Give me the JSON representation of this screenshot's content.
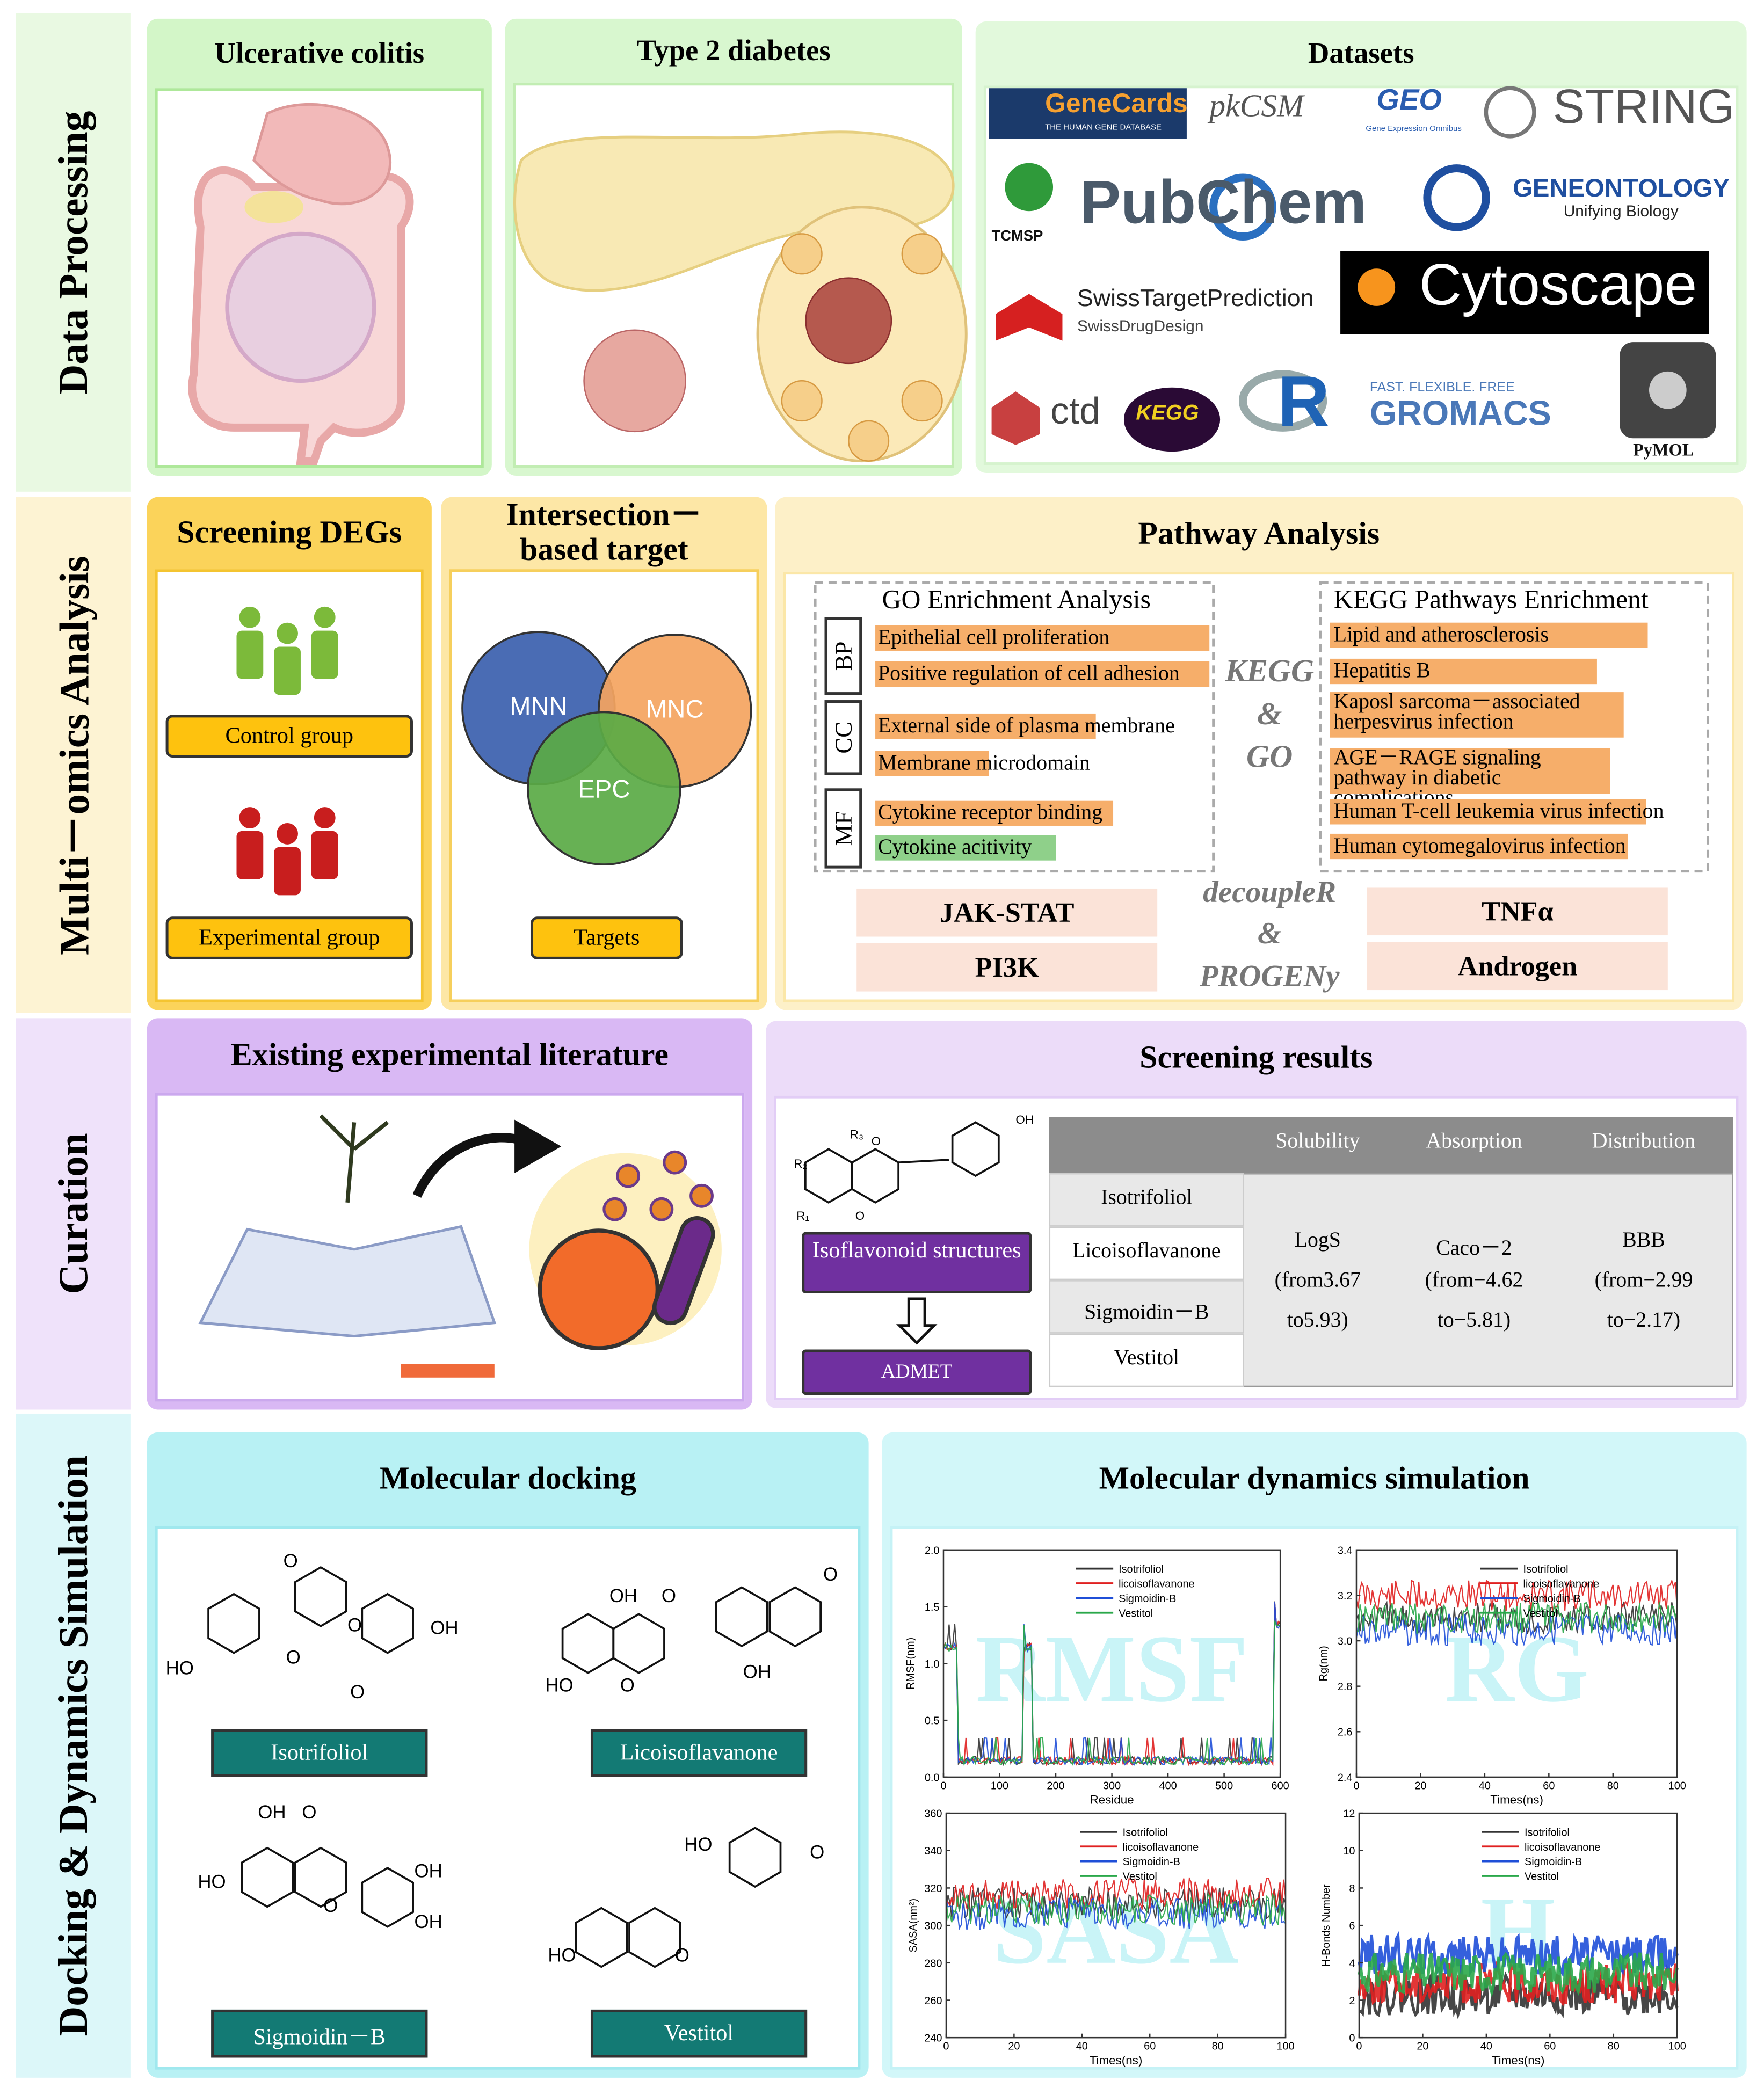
{
  "sections": [
    "Data Processing",
    "Multi－omics Analysis",
    "Curation",
    "Docking & Dynamics Simulation"
  ],
  "data_processing": {
    "colitis": "Ulcerative colitis",
    "diabetes": "Type 2 diabetes",
    "datasets_title": "Datasets",
    "logos": [
      "GeneCards",
      "THE HUMAN GENE DATABASE",
      "pkCSM",
      "GEO",
      "Gene Expression Omnibus",
      "STRING",
      "TCMSP",
      "PubChem",
      "GENEONTOLOGY",
      "Unifying Biology",
      "SwissTargetPrediction",
      "SwissDrugDesign",
      "Cytoscape",
      "ctd",
      "KEGG",
      "R",
      "FAST. FLEXIBLE. FREE",
      "GROMACS",
      "PyMOL"
    ]
  },
  "multi_omics": {
    "screening": {
      "title": "Screening DEGs",
      "groups": [
        "Control group",
        "Experimental group"
      ]
    },
    "intersection": {
      "title": "Intersection－based target",
      "circles": [
        "MNN",
        "MNC",
        "EPC"
      ],
      "button": "Targets"
    },
    "pathway": {
      "title": "Pathway Analysis",
      "go": {
        "title": "GO Enrichment Analysis",
        "groups": [
          {
            "label": "BP",
            "terms": [
              "Epithelial cell proliferation",
              "Positive regulation of cell adhesion"
            ]
          },
          {
            "label": "CC",
            "terms": [
              "External side of plasma membrane",
              "Membrane microdomain"
            ]
          },
          {
            "label": "MF",
            "terms": [
              "Cytokine receptor binding",
              "Cytokine acitivity"
            ]
          }
        ]
      },
      "kegg": {
        "title": "KEGG Pathways Enrichment",
        "terms": [
          "Lipid and atherosclerosis",
          "Hepatitis B",
          "Kaposl sarcoma－associated herpesvirus infection",
          "AGE－RAGE signaling pathway in diabetic complications",
          "Human T-cell leukemia virus infection",
          "Human cytomegalovirus infection"
        ]
      },
      "center": [
        "KEGG",
        "&",
        "GO"
      ],
      "methods": [
        "decoupleR",
        "&",
        "PROGENy"
      ],
      "pathways": [
        "JAK-STAT",
        "PI3K",
        "TNFα",
        "Androgen"
      ]
    }
  },
  "curation": {
    "literature": "Existing experimental literature",
    "results": {
      "title": "Screening results",
      "atoms": [
        "OH",
        "O",
        "R₃",
        "R₂",
        "R₁",
        "O"
      ],
      "structure": "Isoflavonoid structures",
      "admet": "ADMET",
      "table": {
        "header": [
          "Solubility",
          "Absorption",
          "Distribution"
        ],
        "compounds": [
          "Isotrifoliol",
          "Licoisoflavanone",
          "Sigmoidin－B",
          "Vestitol"
        ],
        "cells": [
          [
            "LogS",
            "(from3.67",
            "to5.93)"
          ],
          [
            "Caco－2",
            "(from−4.62",
            "to−5.81)"
          ],
          [
            "BBB",
            "(from−2.99",
            "to−2.17)"
          ]
        ]
      }
    }
  },
  "docking": {
    "title": "Molecular docking",
    "compounds": [
      {
        "name": "Isotrifoliol",
        "atoms": [
          "O",
          "O",
          "OH",
          "HO",
          "O",
          "O"
        ]
      },
      {
        "name": "Licoisoflavanone",
        "atoms": [
          "OH",
          "O",
          "O",
          "HO",
          "O",
          "OH"
        ]
      },
      {
        "name": "Sigmoidin－B",
        "atoms": [
          "OH",
          "O",
          "HO",
          "O",
          "OH",
          "OH"
        ]
      },
      {
        "name": "Vestitol",
        "atoms": [
          "HO",
          "O",
          "HO",
          "O"
        ]
      }
    ]
  },
  "dynamics": {
    "title": "Molecular dynamics simulation",
    "legend": [
      "Isotrifoliol",
      "licoisoflavanone",
      "Sigmoidin-B",
      "Vestitol"
    ],
    "plots": [
      {
        "watermark": "RMSF",
        "xlabel": "Residue",
        "ylabel": "RMSF(nm)",
        "xticks": [
          "0",
          "100",
          "200",
          "300",
          "400",
          "500",
          "600"
        ],
        "yticks": [
          "0.0",
          "0.5",
          "1.0",
          "1.5",
          "2.0"
        ]
      },
      {
        "watermark": "RG",
        "xlabel": "Times(ns)",
        "ylabel": "Rg(nm)",
        "xticks": [
          "0",
          "20",
          "40",
          "60",
          "80",
          "100"
        ],
        "yticks": [
          "2.4",
          "2.6",
          "2.8",
          "3.0",
          "3.2",
          "3.4"
        ]
      },
      {
        "watermark": "SASA",
        "xlabel": "Times(ns)",
        "ylabel": "SASA(nm²)",
        "xticks": [
          "0",
          "20",
          "40",
          "60",
          "80",
          "100"
        ],
        "yticks": [
          "240",
          "260",
          "280",
          "300",
          "320",
          "340",
          "360"
        ]
      },
      {
        "watermark": "H",
        "xlabel": "Times(ns)",
        "ylabel": "H-Bonds Number",
        "xticks": [
          "0",
          "20",
          "40",
          "60",
          "80",
          "100"
        ],
        "yticks": [
          "0",
          "2",
          "4",
          "6",
          "8",
          "10",
          "12"
        ]
      }
    ]
  }
}
